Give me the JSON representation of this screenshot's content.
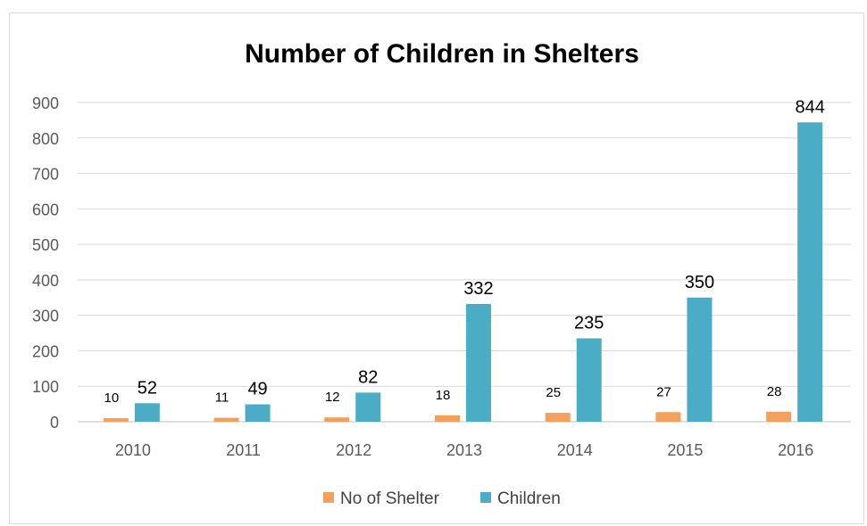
{
  "chart_data": {
    "type": "bar",
    "title": "Number of Children in Shelters",
    "xlabel": "",
    "ylabel": "",
    "categories": [
      "2010",
      "2011",
      "2012",
      "2013",
      "2014",
      "2015",
      "2016"
    ],
    "series": [
      {
        "name": "No of Shelter",
        "values": [
          10,
          11,
          12,
          18,
          25,
          27,
          28
        ],
        "color": "#f4a05c"
      },
      {
        "name": "Children",
        "values": [
          52,
          49,
          82,
          332,
          235,
          350,
          844
        ],
        "color": "#4bacc6"
      }
    ],
    "ylim": [
      0,
      900
    ],
    "yticks": [
      0,
      100,
      200,
      300,
      400,
      500,
      600,
      700,
      800,
      900
    ],
    "grid": true,
    "legend": "bottom"
  }
}
